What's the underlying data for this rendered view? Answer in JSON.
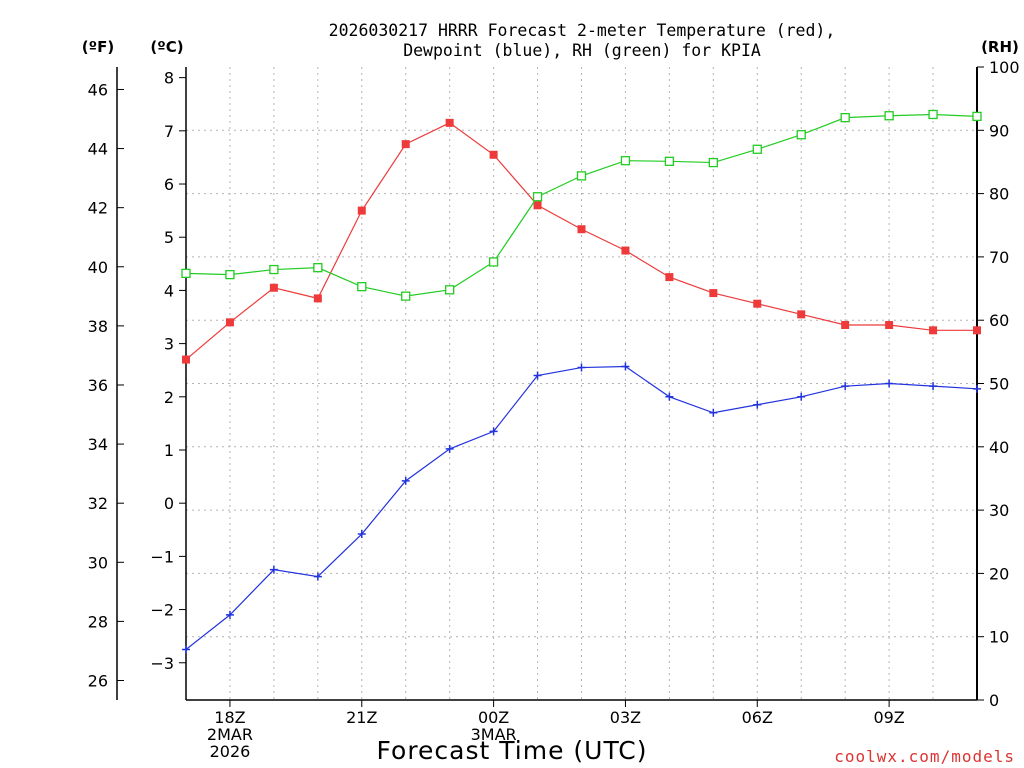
{
  "chart_data": {
    "type": "line",
    "title_line1": "2026030217 HRRR Forecast 2-meter Temperature (red),",
    "title_line2": "Dewpoint (blue), RH (green) for KPIA",
    "xlabel": "Forecast Time (UTC)",
    "watermark": "coolwx.com/models",
    "unit_f": "(ºF)",
    "unit_c": "(ºC)",
    "unit_rh": "(RH)",
    "hours": [
      17,
      18,
      19,
      20,
      21,
      22,
      23,
      24,
      25,
      26,
      27,
      28,
      29,
      30,
      31,
      32,
      33,
      34,
      35
    ],
    "xlim": [
      17,
      35
    ],
    "x_ticks": [
      {
        "hour": 18,
        "lines": [
          "18Z",
          "2MAR",
          "2026"
        ]
      },
      {
        "hour": 21,
        "lines": [
          "21Z"
        ]
      },
      {
        "hour": 24,
        "lines": [
          "00Z",
          "3MAR"
        ]
      },
      {
        "hour": 27,
        "lines": [
          "03Z"
        ]
      },
      {
        "hour": 30,
        "lines": [
          "06Z"
        ]
      },
      {
        "hour": 33,
        "lines": [
          "09Z"
        ]
      }
    ],
    "left_c_axis": {
      "ylim": [
        -3.7,
        8.2
      ],
      "ticks": [
        "8",
        "7",
        "6",
        "5",
        "4",
        "3",
        "2",
        "1",
        "0",
        "−1",
        "−2",
        "−3"
      ]
    },
    "left_f_axis": {
      "ticks": [
        "46",
        "44",
        "42",
        "40",
        "38",
        "36",
        "34",
        "32",
        "30",
        "28",
        "26"
      ]
    },
    "right_rh_axis": {
      "ylim": [
        0,
        100
      ],
      "ticks": [
        "100",
        "90",
        "80",
        "70",
        "60",
        "50",
        "40",
        "30",
        "20",
        "10",
        "0"
      ]
    },
    "series": [
      {
        "name": "Temperature",
        "axis": "C",
        "color": "#ee3a3a",
        "values": [
          2.7,
          3.4,
          4.05,
          3.85,
          5.5,
          6.75,
          7.15,
          6.55,
          5.6,
          5.15,
          4.75,
          4.25,
          3.95,
          3.75,
          3.55,
          3.35,
          3.35,
          3.25,
          3.25
        ]
      },
      {
        "name": "Dewpoint",
        "axis": "C",
        "color": "#2233dd",
        "values": [
          -2.75,
          -2.1,
          -1.25,
          -1.38,
          -0.58,
          0.42,
          1.02,
          1.35,
          2.4,
          2.55,
          2.57,
          2.0,
          1.7,
          1.85,
          2.0,
          2.2,
          2.25,
          2.2,
          2.15
        ]
      },
      {
        "name": "Relative Humidity",
        "axis": "RH",
        "color": "#22cc22",
        "values": [
          67.4,
          67.2,
          68.0,
          68.3,
          65.3,
          63.8,
          64.8,
          69.2,
          79.5,
          82.8,
          85.2,
          85.1,
          84.9,
          87.0,
          89.3,
          92.0,
          92.3,
          92.5,
          92.2
        ]
      }
    ]
  }
}
